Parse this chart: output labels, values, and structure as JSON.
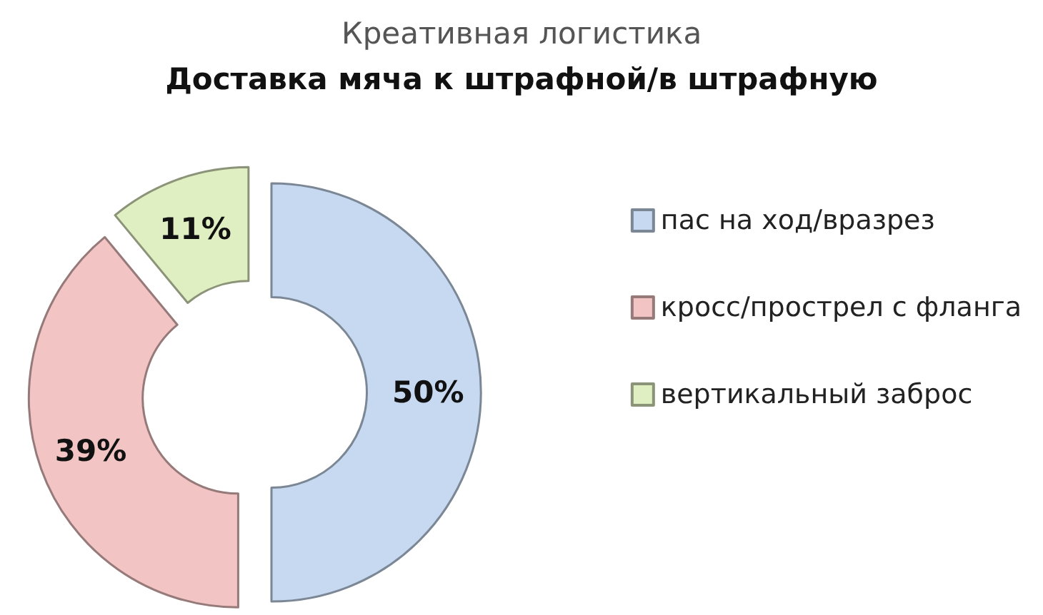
{
  "chart_data": {
    "type": "donut",
    "title": "Креативная логистика",
    "subtitle": "Доставка мяча к штрафной/в штрафную",
    "categories": [
      "пас на ход/вразрез",
      "кросс/прострел с фланга",
      "вертикальный заброс"
    ],
    "values": [
      50,
      39,
      11
    ],
    "value_labels": [
      "50%",
      "39%",
      "11%"
    ],
    "colors": [
      "#c6d9f1",
      "#f2c4c4",
      "#e0efc2"
    ],
    "legend": "right"
  }
}
